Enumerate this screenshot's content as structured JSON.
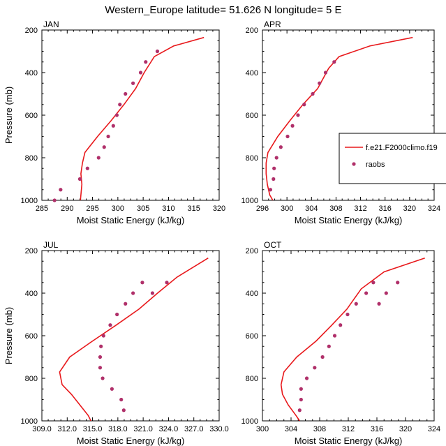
{
  "figure": {
    "title": "Western_Europe  latitude= 51.626 N longitude= 5 E"
  },
  "legend": {
    "entries": [
      {
        "label": "f.e21.F2000climo.f19",
        "kind": "line",
        "color": "#e8191c"
      },
      {
        "label": "raobs",
        "kind": "marker",
        "color": "#b0306a"
      }
    ]
  },
  "chart_data": [
    {
      "type": "line",
      "panel": "JAN",
      "xlabel": "Moist Static Energy (kJ/kg)",
      "ylabel": "Pressure (mb)",
      "xlim": [
        285,
        320
      ],
      "ylim": [
        1000,
        200
      ],
      "xticks": [
        285,
        290,
        295,
        300,
        305,
        310,
        315,
        320
      ],
      "xtick_labels": [
        "285",
        "290",
        "295",
        "300",
        "305",
        "310",
        "315",
        "320"
      ],
      "yticks": [
        200,
        400,
        600,
        800,
        1000
      ],
      "ytick_labels": [
        "200",
        "400",
        "600",
        "800",
        "1000"
      ],
      "series": [
        {
          "name": "f.e21.F2000climo.f19",
          "kind": "line",
          "color": "#e8191c",
          "x": [
            292.6,
            292.7,
            292.9,
            292.7,
            293.0,
            293.5,
            296.0,
            298.7,
            301.2,
            303.5,
            305.2,
            307.2,
            311.0,
            317.0
          ],
          "y": [
            1000,
            975,
            925,
            875,
            825,
            775,
            700,
            625,
            550,
            475,
            400,
            325,
            275,
            235
          ]
        },
        {
          "name": "raobs",
          "kind": "marker",
          "color": "#b0306a",
          "x": [
            287.5,
            288.7,
            292.5,
            294.0,
            296.2,
            297.3,
            298.1,
            299.1,
            299.8,
            300.4,
            301.5,
            303.0,
            304.5,
            305.5,
            307.8
          ],
          "y": [
            1000,
            950,
            900,
            850,
            800,
            750,
            700,
            650,
            600,
            550,
            500,
            450,
            400,
            350,
            300
          ]
        }
      ]
    },
    {
      "type": "line",
      "panel": "APR",
      "xlabel": "Moist Static Energy (kJ/kg)",
      "ylabel": "",
      "xlim": [
        296,
        324
      ],
      "ylim": [
        1000,
        200
      ],
      "xticks": [
        296,
        300,
        304,
        308,
        312,
        316,
        320,
        324
      ],
      "xtick_labels": [
        "296",
        "300",
        "304",
        "308",
        "312",
        "316",
        "320",
        "324"
      ],
      "yticks": [
        200,
        400,
        600,
        800,
        1000
      ],
      "ytick_labels": [
        "200",
        "400",
        "600",
        "800",
        "1000"
      ],
      "series": [
        {
          "name": "f.e21.F2000climo.f19",
          "kind": "line",
          "color": "#e8191c",
          "x": [
            297.7,
            297.2,
            296.8,
            296.6,
            296.6,
            296.9,
            298.5,
            300.5,
            302.6,
            305.0,
            306.8,
            308.5,
            313.5,
            320.5
          ],
          "y": [
            1000,
            975,
            925,
            875,
            825,
            775,
            700,
            625,
            550,
            475,
            380,
            325,
            275,
            235
          ]
        },
        {
          "name": "raobs",
          "kind": "marker",
          "color": "#b0306a",
          "x": [
            297.3,
            297.8,
            297.9,
            298.3,
            299.0,
            300.1,
            300.9,
            301.8,
            302.8,
            304.2,
            305.3,
            306.3,
            307.7
          ],
          "y": [
            950,
            900,
            850,
            800,
            750,
            700,
            650,
            600,
            550,
            500,
            450,
            400,
            350
          ]
        }
      ]
    },
    {
      "type": "line",
      "panel": "JUL",
      "xlabel": "Moist Static Energy (kJ/kg)",
      "ylabel": "Pressure (mb)",
      "xlim": [
        309,
        330
      ],
      "ylim": [
        1000,
        200
      ],
      "xticks": [
        309,
        312,
        315,
        318,
        321,
        324,
        327,
        330
      ],
      "xtick_labels": [
        "309.0",
        "312.0",
        "315.0",
        "318.0",
        "321.0",
        "324.0",
        "327.0",
        "330.0"
      ],
      "yticks": [
        200,
        400,
        600,
        800,
        1000
      ],
      "ytick_labels": [
        "200",
        "400",
        "600",
        "800",
        "1000"
      ],
      "series": [
        {
          "name": "f.e21.F2000climo.f19",
          "kind": "line",
          "color": "#e8191c",
          "x": [
            314.8,
            314.5,
            313.5,
            312.5,
            311.4,
            311.1,
            312.3,
            315.0,
            317.8,
            320.5,
            322.7,
            325.0,
            328.7
          ],
          "y": [
            1000,
            975,
            925,
            875,
            830,
            770,
            700,
            625,
            550,
            475,
            400,
            325,
            235
          ]
        },
        {
          "name": "raobs",
          "kind": "marker",
          "color": "#b0306a",
          "x": [
            318.7,
            318.4,
            317.3,
            316.2,
            315.9,
            315.9,
            316.0,
            316.3,
            317.1,
            317.9,
            318.9,
            319.8,
            320.9,
            322.1,
            323.8
          ],
          "y": [
            950,
            900,
            850,
            800,
            750,
            700,
            650,
            600,
            550,
            500,
            450,
            400,
            350,
            400,
            350
          ]
        }
      ]
    },
    {
      "type": "line",
      "panel": "OCT",
      "xlabel": "Moist Static Energy (kJ/kg)",
      "ylabel": "",
      "xlim": [
        300,
        324
      ],
      "ylim": [
        1000,
        200
      ],
      "xticks": [
        300,
        304,
        308,
        312,
        316,
        320,
        324
      ],
      "xtick_labels": [
        "300",
        "304",
        "308",
        "312",
        "316",
        "320",
        "324"
      ],
      "yticks": [
        200,
        400,
        600,
        800,
        1000
      ],
      "ytick_labels": [
        "200",
        "400",
        "600",
        "800",
        "1000"
      ],
      "series": [
        {
          "name": "f.e21.F2000climo.f19",
          "kind": "line",
          "color": "#e8191c",
          "x": [
            305.2,
            304.7,
            303.6,
            302.8,
            302.6,
            303.0,
            304.8,
            307.5,
            309.7,
            311.8,
            313.8,
            317.0,
            322.7
          ],
          "y": [
            1000,
            975,
            925,
            875,
            830,
            770,
            700,
            625,
            550,
            475,
            380,
            300,
            235
          ]
        },
        {
          "name": "raobs",
          "kind": "marker",
          "color": "#b0306a",
          "x": [
            305.2,
            305.4,
            305.4,
            306.2,
            307.3,
            308.4,
            309.3,
            310.1,
            310.9,
            311.9,
            313.1,
            314.5,
            315.5,
            316.3,
            317.3,
            318.9
          ],
          "y": [
            950,
            900,
            850,
            800,
            750,
            700,
            650,
            600,
            550,
            500,
            450,
            400,
            350,
            450,
            400,
            350
          ]
        }
      ]
    }
  ]
}
